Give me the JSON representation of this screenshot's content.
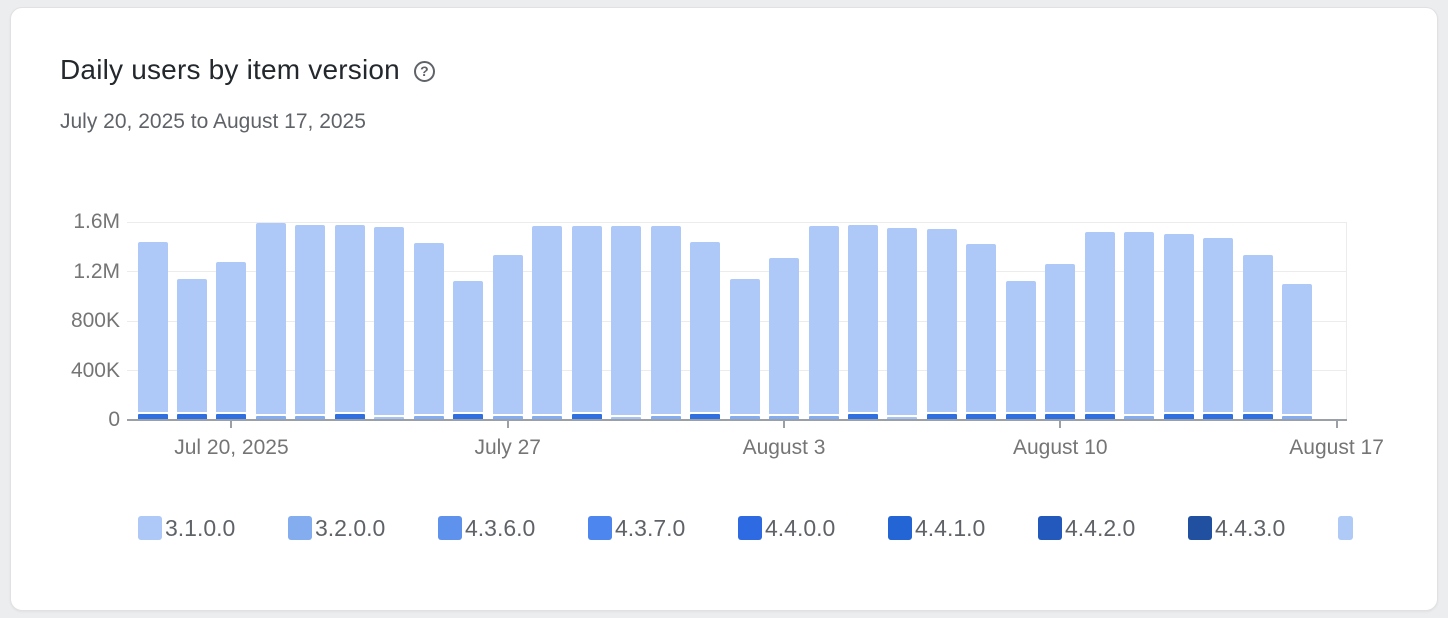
{
  "card": {
    "title": "Daily users by item version",
    "help_icon_glyph": "?",
    "date_range": "July 20, 2025 to August 17, 2025"
  },
  "chart_data": {
    "type": "bar",
    "stacked": true,
    "title": "Daily users by item version",
    "subtitle": "July 20, 2025 to August 17, 2025",
    "xlabel": "",
    "ylabel": "",
    "ylim": [
      0,
      1600000
    ],
    "grid": "horizontal",
    "legend_position": "bottom",
    "y_ticks": [
      {
        "label": "1.6M",
        "value": 1600000
      },
      {
        "label": "1.2M",
        "value": 1200000
      },
      {
        "label": "800K",
        "value": 800000
      },
      {
        "label": "400K",
        "value": 400000
      },
      {
        "label": "0",
        "value": 0
      }
    ],
    "x_ticks": [
      {
        "label": "Jul 20, 2025",
        "day_index": 2
      },
      {
        "label": "July 27",
        "day_index": 9
      },
      {
        "label": "August 3",
        "day_index": 16
      },
      {
        "label": "August 10",
        "day_index": 23
      },
      {
        "label": "August 17",
        "day_index": 30
      }
    ],
    "legend": [
      {
        "label": "3.1.0.0",
        "color": "#aec9f7",
        "clipped": false
      },
      {
        "label": "3.2.0.0",
        "color": "#84adf0",
        "clipped": false
      },
      {
        "label": "4.3.6.0",
        "color": "#5e92ec",
        "clipped": false
      },
      {
        "label": "4.3.7.0",
        "color": "#4d86ee",
        "clipped": false
      },
      {
        "label": "4.4.0.0",
        "color": "#2e6be2",
        "clipped": false
      },
      {
        "label": "4.4.1.0",
        "color": "#2465d5",
        "clipped": false
      },
      {
        "label": "4.4.2.0",
        "color": "#2359bd",
        "clipped": false
      },
      {
        "label": "4.4.3.0",
        "color": "#20509f",
        "clipped": false
      },
      {
        "label": "",
        "color": "#b0caf8",
        "clipped": true
      }
    ],
    "dominant_series": "3.1.0.0",
    "dominant_color": "#aec9f7",
    "bars": [
      {
        "date": "Jul 18",
        "total": 1440000,
        "bottom_value": 45000,
        "bottom_color": "#2f6fe0"
      },
      {
        "date": "Jul 19",
        "total": 1140000,
        "bottom_value": 45000,
        "bottom_color": "#2f6fe0"
      },
      {
        "date": "Jul 20",
        "total": 1280000,
        "bottom_value": 45000,
        "bottom_color": "#2f6fe0"
      },
      {
        "date": "Jul 21",
        "total": 1590000,
        "bottom_value": 30000,
        "bottom_color": "#83adf0"
      },
      {
        "date": "Jul 22",
        "total": 1575000,
        "bottom_value": 30000,
        "bottom_color": "#83adf0"
      },
      {
        "date": "Jul 23",
        "total": 1575000,
        "bottom_value": 45000,
        "bottom_color": "#2f6fe0"
      },
      {
        "date": "Jul 24",
        "total": 1560000,
        "bottom_value": 22000,
        "bottom_color": "#a6c3f5"
      },
      {
        "date": "Jul 25",
        "total": 1430000,
        "bottom_value": 30000,
        "bottom_color": "#83adf0"
      },
      {
        "date": "Jul 26",
        "total": 1120000,
        "bottom_value": 45000,
        "bottom_color": "#2f6fe0"
      },
      {
        "date": "Jul 27",
        "total": 1330000,
        "bottom_value": 30000,
        "bottom_color": "#83adf0"
      },
      {
        "date": "Jul 28",
        "total": 1570000,
        "bottom_value": 30000,
        "bottom_color": "#83adf0"
      },
      {
        "date": "Jul 29",
        "total": 1570000,
        "bottom_value": 45000,
        "bottom_color": "#2f6fe0"
      },
      {
        "date": "Jul 30",
        "total": 1570000,
        "bottom_value": 22000,
        "bottom_color": "#a6c3f5"
      },
      {
        "date": "Jul 31",
        "total": 1570000,
        "bottom_value": 30000,
        "bottom_color": "#83adf0"
      },
      {
        "date": "Aug 1",
        "total": 1440000,
        "bottom_value": 45000,
        "bottom_color": "#2f6fe0"
      },
      {
        "date": "Aug 2",
        "total": 1140000,
        "bottom_value": 30000,
        "bottom_color": "#83adf0"
      },
      {
        "date": "Aug 3",
        "total": 1310000,
        "bottom_value": 30000,
        "bottom_color": "#83adf0"
      },
      {
        "date": "Aug 4",
        "total": 1570000,
        "bottom_value": 30000,
        "bottom_color": "#83adf0"
      },
      {
        "date": "Aug 5",
        "total": 1575000,
        "bottom_value": 45000,
        "bottom_color": "#2f6fe0"
      },
      {
        "date": "Aug 6",
        "total": 1550000,
        "bottom_value": 22000,
        "bottom_color": "#a6c3f5"
      },
      {
        "date": "Aug 7",
        "total": 1540000,
        "bottom_value": 45000,
        "bottom_color": "#2f6fe0"
      },
      {
        "date": "Aug 8",
        "total": 1420000,
        "bottom_value": 45000,
        "bottom_color": "#2f6fe0"
      },
      {
        "date": "Aug 9",
        "total": 1120000,
        "bottom_value": 45000,
        "bottom_color": "#2f6fe0"
      },
      {
        "date": "Aug 10",
        "total": 1260000,
        "bottom_value": 45000,
        "bottom_color": "#2f6fe0"
      },
      {
        "date": "Aug 11",
        "total": 1520000,
        "bottom_value": 45000,
        "bottom_color": "#2f6fe0"
      },
      {
        "date": "Aug 12",
        "total": 1520000,
        "bottom_value": 30000,
        "bottom_color": "#83adf0"
      },
      {
        "date": "Aug 13",
        "total": 1500000,
        "bottom_value": 45000,
        "bottom_color": "#2f6fe0"
      },
      {
        "date": "Aug 14",
        "total": 1470000,
        "bottom_value": 45000,
        "bottom_color": "#2f6fe0"
      },
      {
        "date": "Aug 15",
        "total": 1330000,
        "bottom_value": 45000,
        "bottom_color": "#2f6fe0"
      },
      {
        "date": "Aug 16",
        "total": 1100000,
        "bottom_value": 30000,
        "bottom_color": "#83adf0"
      }
    ]
  }
}
